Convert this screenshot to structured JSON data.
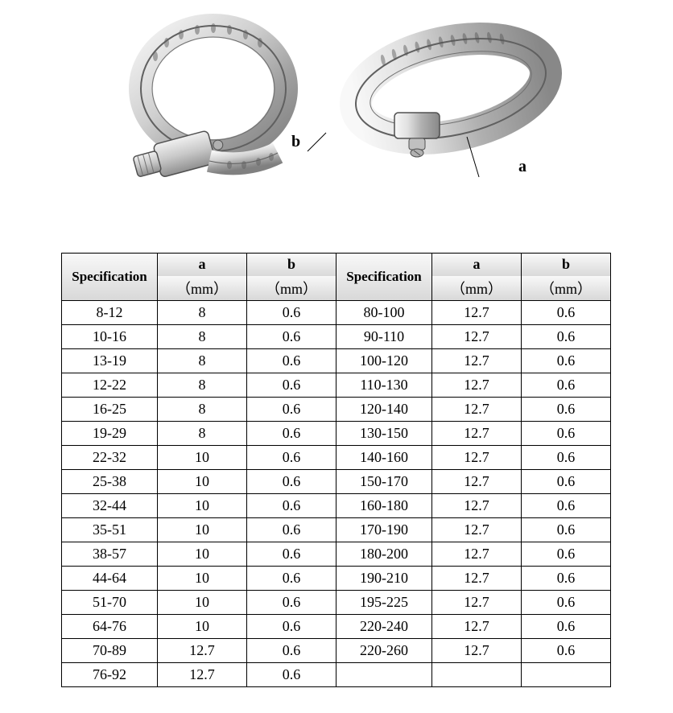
{
  "labels": {
    "a": "a",
    "b": "b"
  },
  "table": {
    "type": "table",
    "header": {
      "spec": "Specification",
      "col_a": "a",
      "col_b": "b",
      "unit_a": "（mm）",
      "unit_b": "（mm）"
    },
    "background_gradient": [
      "#f8f8f8",
      "#d8d8d8"
    ],
    "border_color": "#000000",
    "font_size": 18,
    "header_font_weight": "bold",
    "column_widths": {
      "spec": 118,
      "val": 110
    },
    "rows_left": [
      {
        "spec": "8-12",
        "a": "8",
        "b": "0.6"
      },
      {
        "spec": "10-16",
        "a": "8",
        "b": "0.6"
      },
      {
        "spec": "13-19",
        "a": "8",
        "b": "0.6"
      },
      {
        "spec": "12-22",
        "a": "8",
        "b": "0.6"
      },
      {
        "spec": "16-25",
        "a": "8",
        "b": "0.6"
      },
      {
        "spec": "19-29",
        "a": "8",
        "b": "0.6"
      },
      {
        "spec": "22-32",
        "a": "10",
        "b": "0.6"
      },
      {
        "spec": "25-38",
        "a": "10",
        "b": "0.6"
      },
      {
        "spec": "32-44",
        "a": "10",
        "b": "0.6"
      },
      {
        "spec": "35-51",
        "a": "10",
        "b": "0.6"
      },
      {
        "spec": "38-57",
        "a": "10",
        "b": "0.6"
      },
      {
        "spec": "44-64",
        "a": "10",
        "b": "0.6"
      },
      {
        "spec": "51-70",
        "a": "10",
        "b": "0.6"
      },
      {
        "spec": "64-76",
        "a": "10",
        "b": "0.6"
      },
      {
        "spec": "70-89",
        "a": "12.7",
        "b": "0.6"
      },
      {
        "spec": "76-92",
        "a": "12.7",
        "b": "0.6"
      }
    ],
    "rows_right": [
      {
        "spec": "80-100",
        "a": "12.7",
        "b": "0.6"
      },
      {
        "spec": "90-110",
        "a": "12.7",
        "b": "0.6"
      },
      {
        "spec": "100-120",
        "a": "12.7",
        "b": "0.6"
      },
      {
        "spec": "110-130",
        "a": "12.7",
        "b": "0.6"
      },
      {
        "spec": "120-140",
        "a": "12.7",
        "b": "0.6"
      },
      {
        "spec": "130-150",
        "a": "12.7",
        "b": "0.6"
      },
      {
        "spec": "140-160",
        "a": "12.7",
        "b": "0.6"
      },
      {
        "spec": "150-170",
        "a": "12.7",
        "b": "0.6"
      },
      {
        "spec": "160-180",
        "a": "12.7",
        "b": "0.6"
      },
      {
        "spec": "170-190",
        "a": "12.7",
        "b": "0.6"
      },
      {
        "spec": "180-200",
        "a": "12.7",
        "b": "0.6"
      },
      {
        "spec": "190-210",
        "a": "12.7",
        "b": "0.6"
      },
      {
        "spec": "195-225",
        "a": "12.7",
        "b": "0.6"
      },
      {
        "spec": "220-240",
        "a": "12.7",
        "b": "0.6"
      },
      {
        "spec": "220-260",
        "a": "12.7",
        "b": "0.6"
      },
      {
        "spec": "",
        "a": "",
        "b": ""
      }
    ]
  },
  "clamp_colors": {
    "metal_light": "#e8e8e8",
    "metal_mid": "#c0c0c0",
    "metal_dark": "#888888",
    "outline": "#404040"
  }
}
